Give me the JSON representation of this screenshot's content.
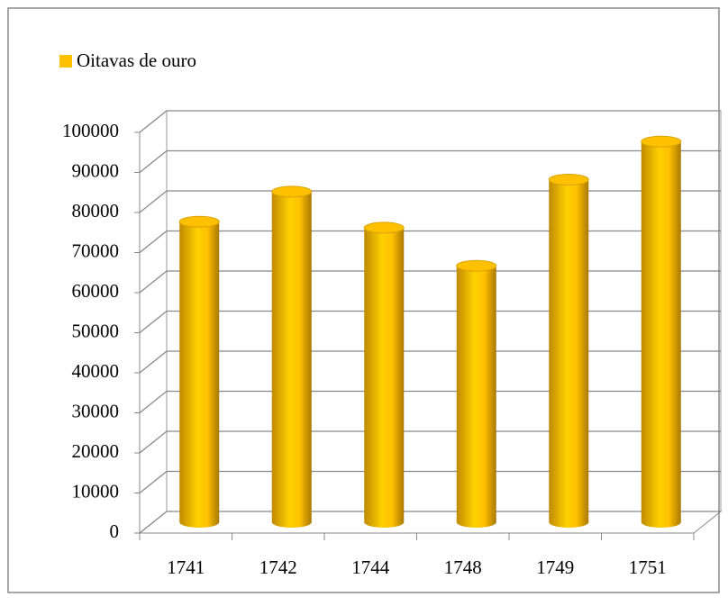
{
  "chart_data": {
    "type": "bar3d",
    "categories": [
      "1741",
      "1742",
      "1744",
      "1748",
      "1749",
      "1751"
    ],
    "series": [
      {
        "name": "Oitavas de ouro",
        "color": "#ffc000",
        "values": [
          75000,
          82500,
          73500,
          64000,
          85500,
          95000
        ]
      }
    ],
    "ylim": [
      0,
      100000
    ],
    "yticks": [
      0,
      10000,
      20000,
      30000,
      40000,
      50000,
      60000,
      70000,
      80000,
      90000,
      100000
    ],
    "grid": true,
    "legend": "top-left"
  }
}
